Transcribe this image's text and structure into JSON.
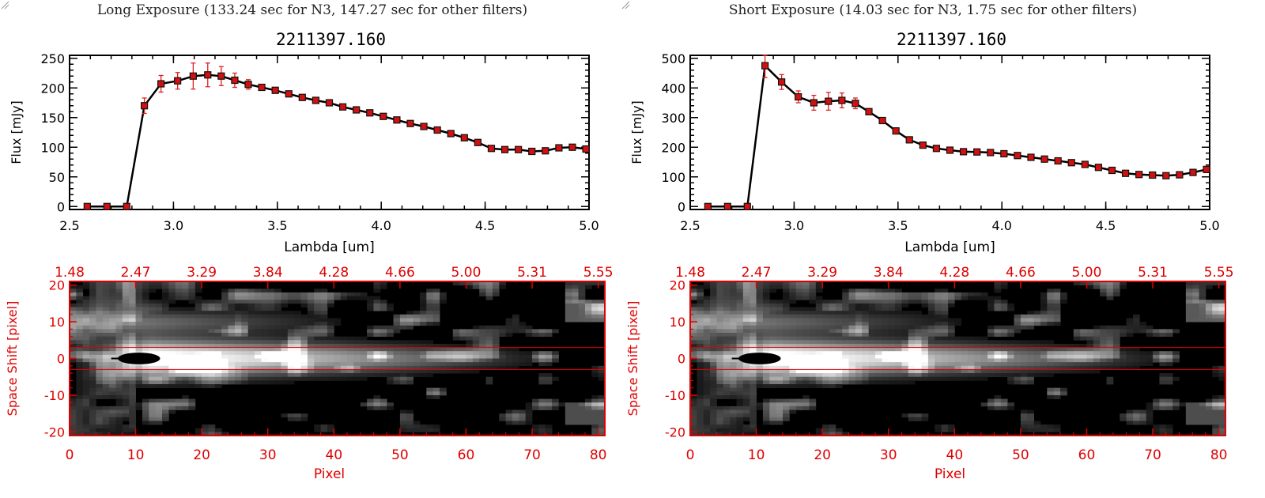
{
  "panels": [
    {
      "title": "Long Exposure (133.24 sec for N3, 147.27 sec for other filters)",
      "chart_data": {
        "type": "line",
        "title": "2211397.160",
        "xlabel": "Lambda [um]",
        "ylabel": "Flux [mJy]",
        "xlim": [
          2.5,
          5.0
        ],
        "ylim": [
          -5,
          255
        ],
        "xticks": [
          "2.5",
          "3.0",
          "3.5",
          "4.0",
          "4.5",
          "5.0"
        ],
        "yticks": [
          "0",
          "50",
          "100",
          "150",
          "200",
          "250"
        ],
        "x": [
          2.585,
          2.68,
          2.775,
          2.86,
          2.94,
          3.02,
          3.095,
          3.165,
          3.23,
          3.295,
          3.36,
          3.425,
          3.49,
          3.555,
          3.62,
          3.685,
          3.75,
          3.815,
          3.88,
          3.945,
          4.01,
          4.075,
          4.14,
          4.205,
          4.27,
          4.335,
          4.4,
          4.465,
          4.53,
          4.595,
          4.66,
          4.725,
          4.79,
          4.855,
          4.92,
          4.985
        ],
        "y": [
          0,
          0,
          0,
          170,
          207,
          212,
          220,
          222,
          220,
          213,
          206,
          201,
          196,
          190,
          184,
          179,
          175,
          168,
          163,
          158,
          152,
          146,
          140,
          135,
          129,
          123,
          116,
          108,
          98,
          96,
          96,
          93,
          94,
          99,
          100,
          97
        ],
        "yerr": [
          0,
          0,
          0,
          13,
          14,
          14,
          22,
          20,
          16,
          12,
          8,
          5,
          4,
          3,
          3,
          3,
          3,
          3,
          3,
          3,
          3,
          3,
          3,
          3,
          3,
          3,
          3,
          3,
          3,
          3,
          3,
          3,
          3,
          4,
          4,
          4
        ]
      },
      "image": {
        "top_axis_ticks": [
          "1.48",
          "2.47",
          "3.29",
          "3.84",
          "4.28",
          "4.66",
          "5.00",
          "5.31",
          "5.55"
        ],
        "bottom_axis_ticks": [
          "0",
          "10",
          "20",
          "30",
          "40",
          "50",
          "60",
          "70",
          "80"
        ],
        "left_axis_ticks": [
          "20",
          "10",
          "0",
          "-10",
          "-20"
        ],
        "xlabel": "Pixel",
        "ylabel": "Space Shift [pixel]",
        "xlim": [
          0,
          81
        ],
        "ylim": [
          -21,
          21
        ],
        "aperture": [
          -3,
          3
        ]
      }
    },
    {
      "title": "Short Exposure (14.03 sec for N3, 1.75 sec for other filters)",
      "chart_data": {
        "type": "line",
        "title": "2211397.160",
        "xlabel": "Lambda [um]",
        "ylabel": "Flux [mJy]",
        "xlim": [
          2.5,
          5.0
        ],
        "ylim": [
          -10,
          510
        ],
        "xticks": [
          "2.5",
          "3.0",
          "3.5",
          "4.0",
          "4.5",
          "5.0"
        ],
        "yticks": [
          "0",
          "100",
          "200",
          "300",
          "400",
          "500"
        ],
        "x": [
          2.585,
          2.68,
          2.775,
          2.86,
          2.94,
          3.02,
          3.095,
          3.165,
          3.23,
          3.295,
          3.36,
          3.425,
          3.49,
          3.555,
          3.62,
          3.685,
          3.75,
          3.815,
          3.88,
          3.945,
          4.01,
          4.075,
          4.14,
          4.205,
          4.27,
          4.335,
          4.4,
          4.465,
          4.53,
          4.595,
          4.66,
          4.725,
          4.79,
          4.855,
          4.92,
          4.985
        ],
        "y": [
          0,
          0,
          0,
          475,
          420,
          370,
          350,
          355,
          358,
          348,
          320,
          290,
          255,
          225,
          207,
          196,
          190,
          185,
          184,
          182,
          178,
          172,
          166,
          160,
          154,
          148,
          142,
          132,
          122,
          112,
          108,
          106,
          104,
          107,
          115,
          125
        ],
        "yerr": [
          0,
          0,
          0,
          40,
          25,
          20,
          25,
          30,
          25,
          18,
          10,
          8,
          6,
          5,
          5,
          5,
          5,
          5,
          5,
          5,
          5,
          5,
          5,
          5,
          5,
          5,
          5,
          5,
          5,
          5,
          5,
          5,
          5,
          5,
          5,
          5
        ]
      },
      "image": {
        "top_axis_ticks": [
          "1.48",
          "2.47",
          "3.29",
          "3.84",
          "4.28",
          "4.66",
          "5.00",
          "5.31",
          "5.55"
        ],
        "bottom_axis_ticks": [
          "0",
          "10",
          "20",
          "30",
          "40",
          "50",
          "60",
          "70",
          "80"
        ],
        "left_axis_ticks": [
          "20",
          "10",
          "0",
          "-10",
          "-20"
        ],
        "xlabel": "Pixel",
        "ylabel": "Space Shift [pixel]",
        "xlim": [
          0,
          81
        ],
        "ylim": [
          -21,
          21
        ],
        "aperture": [
          -3,
          3
        ]
      }
    }
  ],
  "colors": {
    "axis": "#000000",
    "image_axis": "#e00000",
    "marker": "#d11010",
    "errorbar": "#e02020",
    "line": "#000000"
  },
  "icons": [
    "resize-grip-icon"
  ]
}
